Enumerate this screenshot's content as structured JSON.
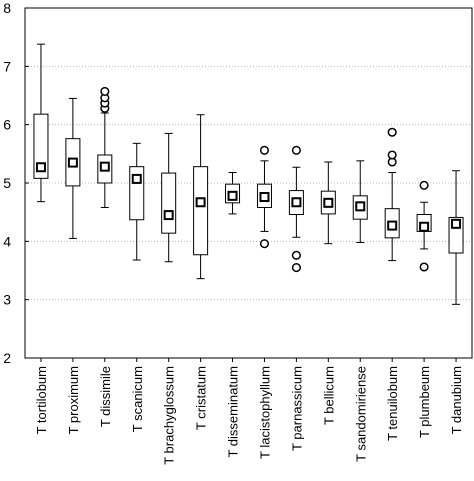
{
  "chart_data": {
    "type": "box",
    "title": "",
    "xlabel": "",
    "ylabel": "",
    "ylim": [
      2,
      8
    ],
    "yticks": [
      2,
      3,
      4,
      5,
      6,
      7,
      8
    ],
    "grid": "horizontal dashed",
    "categories": [
      "T tortilobum",
      "T proximum",
      "T dissimile",
      "T scanicum",
      "T brachyglossum",
      "T cristatum",
      "T disseminatum",
      "T lacistophyllum",
      "T parnassicum",
      "T bellicum",
      "T sandomiriense",
      "T tenuilobum",
      "T plumbeum",
      "T danubium"
    ],
    "boxes": [
      {
        "whisker_low": 4.68,
        "q1": 5.08,
        "median": 5.27,
        "q3": 6.18,
        "whisker_high": 7.38,
        "outliers": []
      },
      {
        "whisker_low": 4.05,
        "q1": 4.95,
        "median": 5.35,
        "q3": 5.76,
        "whisker_high": 6.45,
        "outliers": []
      },
      {
        "whisker_low": 4.58,
        "q1": 5.0,
        "median": 5.28,
        "q3": 5.48,
        "whisker_high": 6.2,
        "outliers": [
          6.28,
          6.37,
          6.46,
          6.57
        ]
      },
      {
        "whisker_low": 3.68,
        "q1": 4.37,
        "median": 5.07,
        "q3": 5.28,
        "whisker_high": 5.68,
        "outliers": []
      },
      {
        "whisker_low": 3.65,
        "q1": 4.14,
        "median": 4.45,
        "q3": 5.17,
        "whisker_high": 5.85,
        "outliers": []
      },
      {
        "whisker_low": 3.36,
        "q1": 3.77,
        "median": 4.67,
        "q3": 5.28,
        "whisker_high": 6.17,
        "outliers": []
      },
      {
        "whisker_low": 4.47,
        "q1": 4.66,
        "median": 4.78,
        "q3": 4.98,
        "whisker_high": 5.18,
        "outliers": []
      },
      {
        "whisker_low": 4.17,
        "q1": 4.58,
        "median": 4.76,
        "q3": 4.98,
        "whisker_high": 5.38,
        "outliers": [
          3.96,
          5.56
        ]
      },
      {
        "whisker_low": 4.07,
        "q1": 4.46,
        "median": 4.67,
        "q3": 4.87,
        "whisker_high": 5.27,
        "outliers": [
          3.55,
          3.76,
          5.56
        ]
      },
      {
        "whisker_low": 3.96,
        "q1": 4.47,
        "median": 4.66,
        "q3": 4.86,
        "whisker_high": 5.36,
        "outliers": []
      },
      {
        "whisker_low": 3.98,
        "q1": 4.38,
        "median": 4.6,
        "q3": 4.78,
        "whisker_high": 5.38,
        "outliers": []
      },
      {
        "whisker_low": 3.67,
        "q1": 4.06,
        "median": 4.27,
        "q3": 4.56,
        "whisker_high": 5.18,
        "outliers": [
          5.36,
          5.48,
          5.87
        ]
      },
      {
        "whisker_low": 3.87,
        "q1": 4.17,
        "median": 4.25,
        "q3": 4.46,
        "whisker_high": 4.67,
        "outliers": [
          3.56,
          4.96
        ]
      },
      {
        "whisker_low": 2.92,
        "q1": 3.8,
        "median": 4.3,
        "q3": 4.41,
        "whisker_high": 5.21,
        "outliers": []
      }
    ]
  }
}
